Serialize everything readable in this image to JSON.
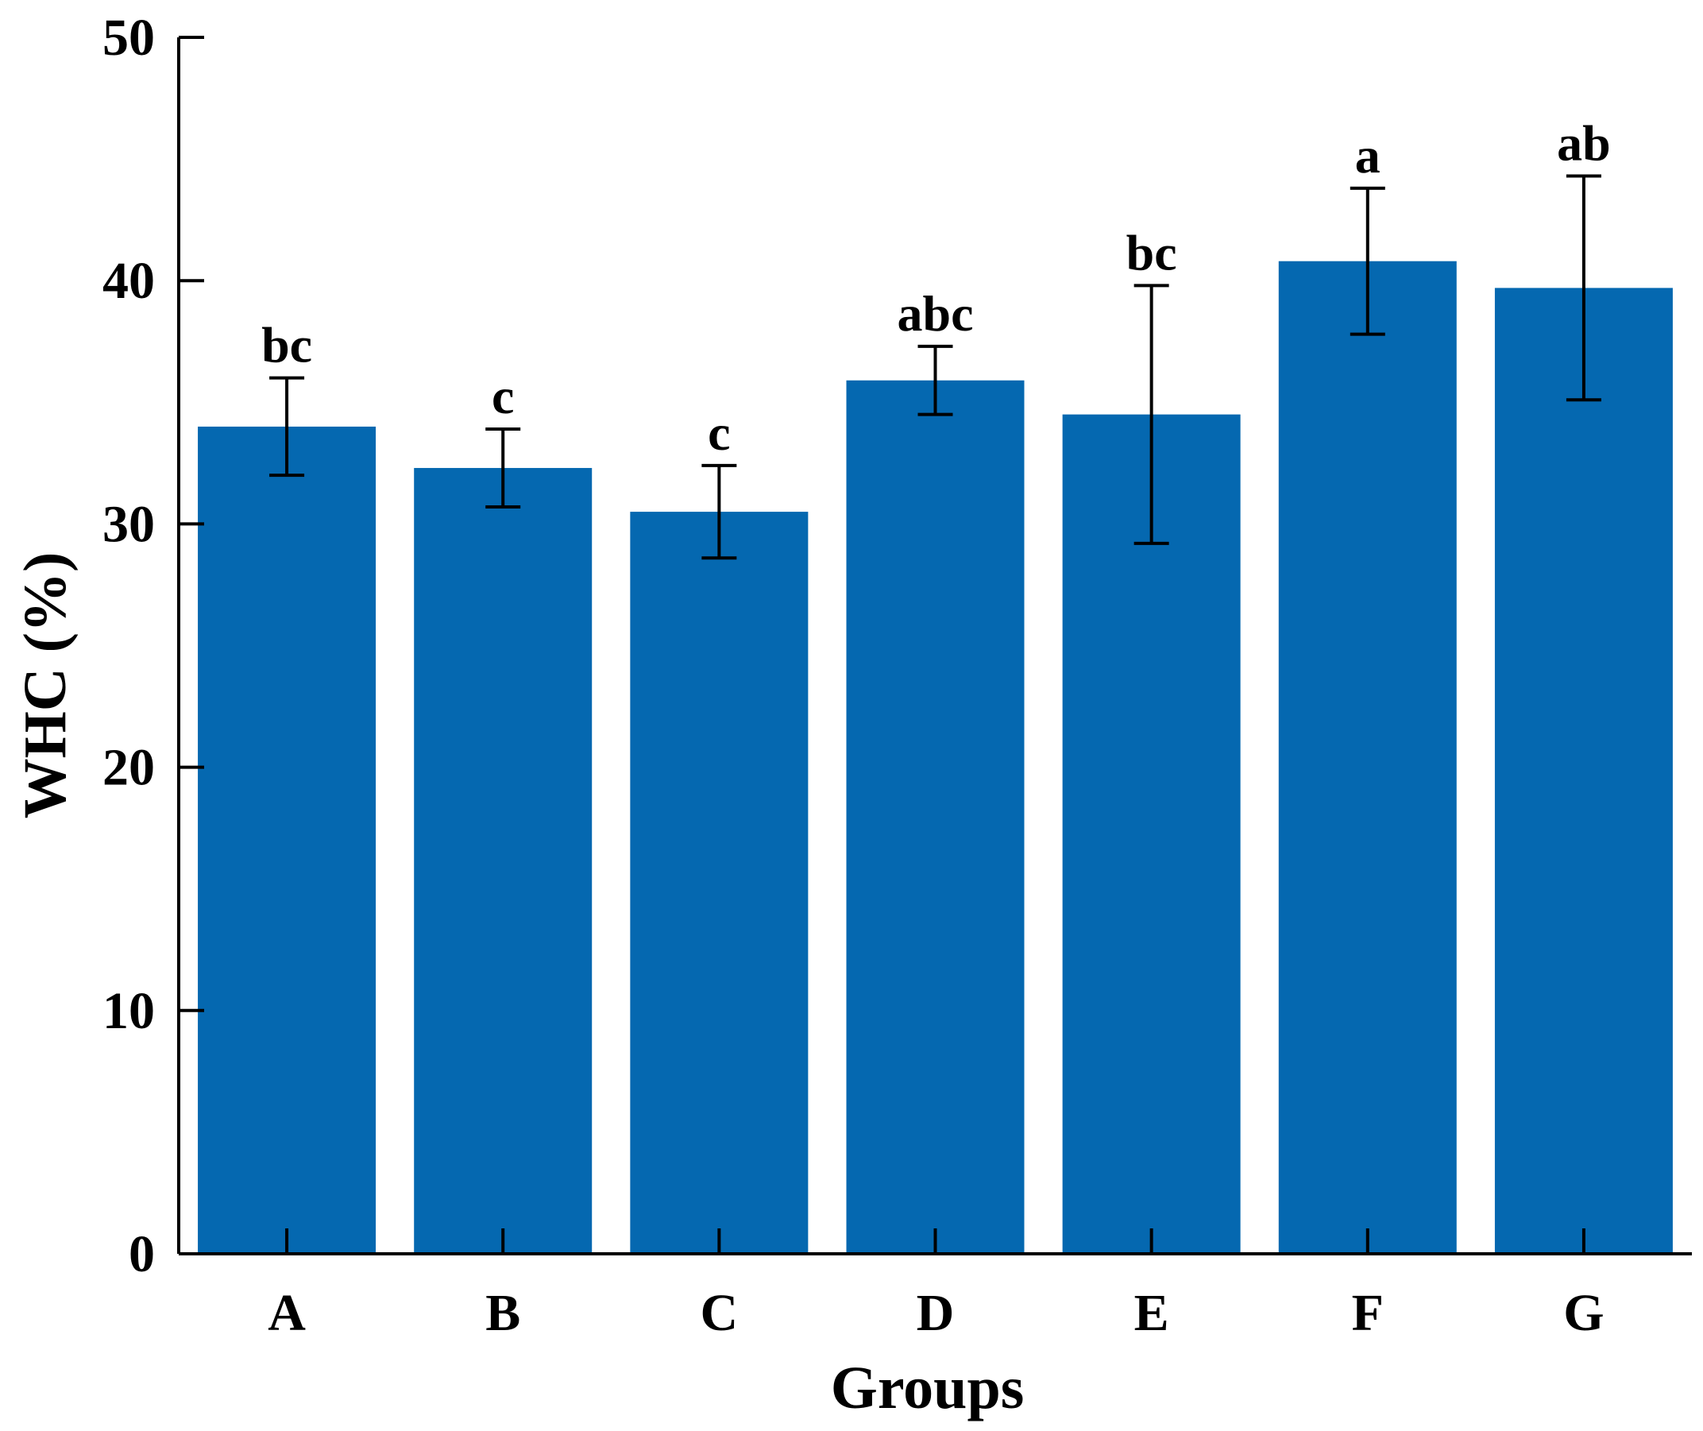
{
  "chart_data": {
    "type": "bar",
    "title": "",
    "xlabel": "Groups",
    "ylabel": "WHC (%)",
    "ylim": [
      0,
      50
    ],
    "yticks": [
      "0",
      "10",
      "20",
      "30",
      "40",
      "50"
    ],
    "categories": [
      "A",
      "B",
      "C",
      "D",
      "E",
      "F",
      "G"
    ],
    "values": [
      34.0,
      32.3,
      30.5,
      35.9,
      34.5,
      40.8,
      39.7
    ],
    "errors": [
      2.0,
      1.6,
      1.9,
      1.4,
      5.3,
      3.0,
      4.6
    ],
    "significance_labels": [
      "bc",
      "c",
      "c",
      "abc",
      "bc",
      "a",
      "ab"
    ],
    "bar_color": "#0568B0",
    "grid": false,
    "legend": "none"
  }
}
